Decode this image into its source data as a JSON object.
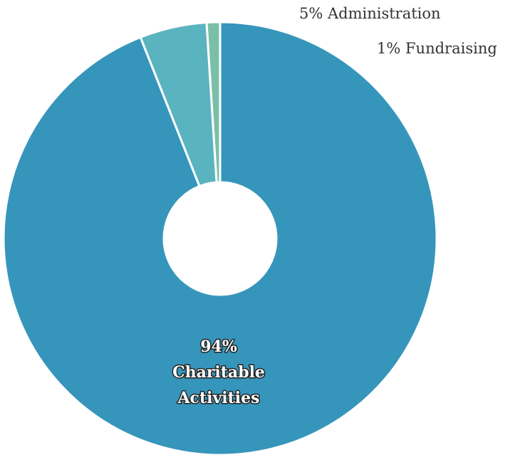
{
  "chart_data": {
    "type": "pie",
    "style": "donut",
    "title": "",
    "slices": [
      {
        "name": "Fundraising",
        "value": 1,
        "label": "1% Fundraising",
        "color": "#7bbfa9",
        "label_placement": "outside"
      },
      {
        "name": "Administration",
        "value": 5,
        "label": "5% Administration",
        "color": "#5ab4bf",
        "label_placement": "outside"
      },
      {
        "name": "Charitable Activities",
        "value": 94,
        "label_lines": [
          "94%",
          "Charitable",
          "Activities"
        ],
        "color": "#3695bb",
        "label_placement": "inside"
      }
    ],
    "legend": "none"
  }
}
